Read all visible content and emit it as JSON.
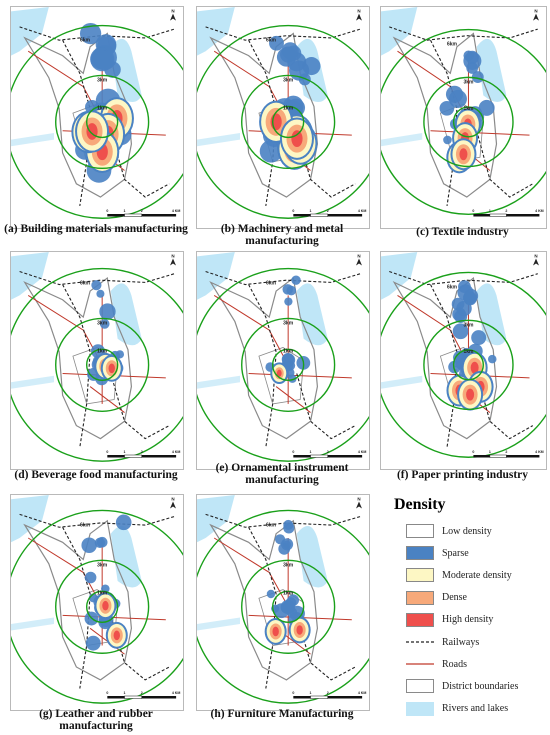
{
  "panels": [
    {
      "id": "a",
      "caption_lines": [
        "(a) Building materials manufacturing"
      ],
      "intensity": 5
    },
    {
      "id": "b",
      "caption_lines": [
        "(b) Machinery and metal",
        "manufacturing"
      ],
      "intensity": 5
    },
    {
      "id": "c",
      "caption_lines": [
        "(c) Textile industry"
      ],
      "intensity": 3
    },
    {
      "id": "d",
      "caption_lines": [
        "(d) Beverage food manufacturing"
      ],
      "intensity": 2
    },
    {
      "id": "e",
      "caption_lines": [
        "(e) Ornamental instrument",
        "manufacturing"
      ],
      "intensity": 1
    },
    {
      "id": "f",
      "caption_lines": [
        "(f) Paper printing industry"
      ],
      "intensity": 3
    },
    {
      "id": "g",
      "caption_lines": [
        "(g) Leather and rubber manufacturing"
      ],
      "intensity": 2
    },
    {
      "id": "h",
      "caption_lines": [
        "(h) Furniture Manufacturing"
      ],
      "intensity": 2
    }
  ],
  "map_labels": {
    "ring_6km": "6km",
    "ring_3km": "3km",
    "ring_1km": "1km",
    "north": "N",
    "scale_ticks": [
      "0",
      "1",
      "2",
      "4 KM"
    ]
  },
  "legend": {
    "title": "Density",
    "items": [
      {
        "label": "Low density",
        "kind": "box",
        "color": "#ffffff"
      },
      {
        "label": "Sparse",
        "kind": "box",
        "color": "#4a82c3"
      },
      {
        "label": "Moderate density",
        "kind": "box",
        "color": "#fdf7c4"
      },
      {
        "label": "Dense",
        "kind": "box",
        "color": "#f7a97a"
      },
      {
        "label": "High density",
        "kind": "box",
        "color": "#ef4f4c"
      },
      {
        "label": "Railways",
        "kind": "dash",
        "color": "#222222"
      },
      {
        "label": "Roads",
        "kind": "line",
        "color": "#c0392b"
      },
      {
        "label": "District boundaries",
        "kind": "outline",
        "color": "#8a8a8a"
      },
      {
        "label": "Rivers and lakes",
        "kind": "box",
        "color": "#bfe6f7"
      }
    ]
  },
  "colors": {
    "ring": "#1aa01a",
    "water": "#bfe6f7",
    "sparse": "#4a82c3",
    "moderate": "#fdf7c4",
    "dense": "#f7a97a",
    "high": "#ef4f4c",
    "road": "#c0392b",
    "boundary": "#8a8a8a"
  }
}
